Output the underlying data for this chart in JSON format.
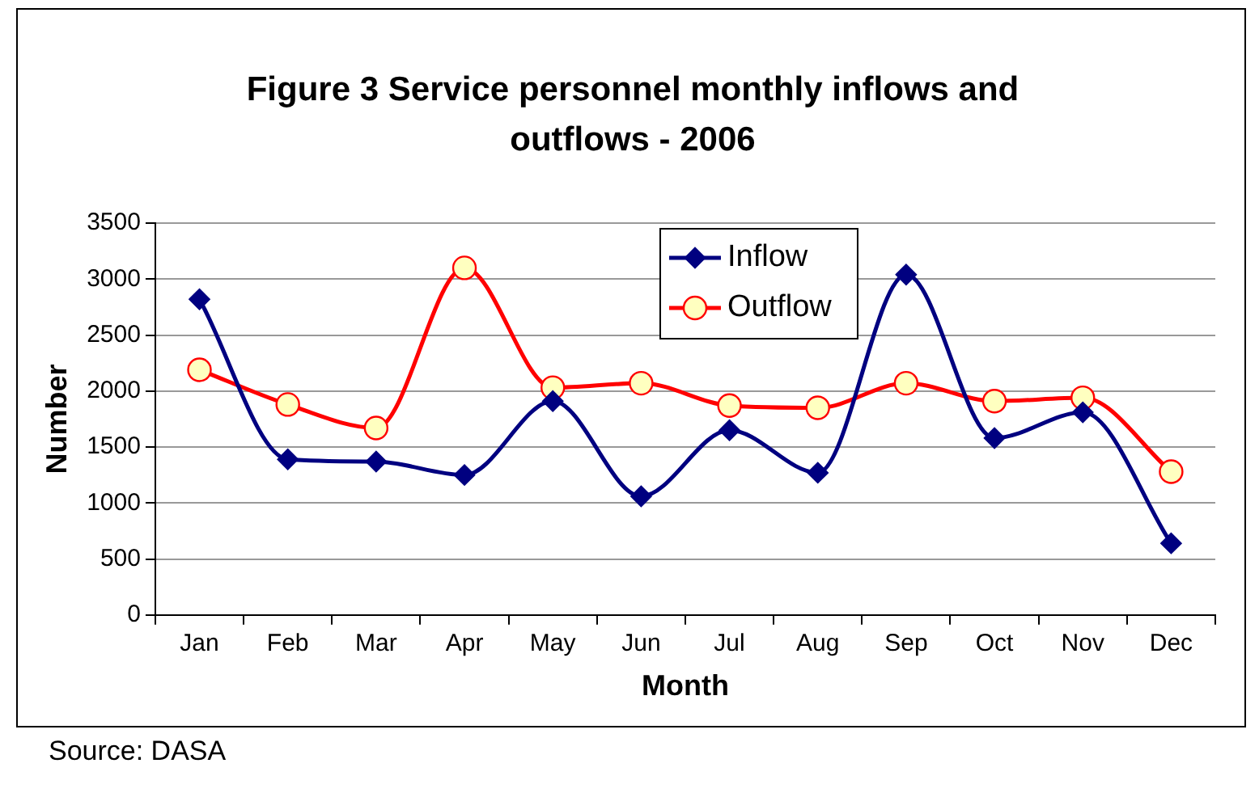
{
  "chart_data": {
    "type": "line",
    "title": "Figure 3 Service personnel monthly inflows and outflows - 2006",
    "xlabel": "Month",
    "ylabel": "Number",
    "categories": [
      "Jan",
      "Feb",
      "Mar",
      "Apr",
      "May",
      "Jun",
      "Jul",
      "Aug",
      "Sep",
      "Oct",
      "Nov",
      "Dec"
    ],
    "series": [
      {
        "name": "Inflow",
        "color": "#000080",
        "marker": "diamond",
        "values": [
          2820,
          1390,
          1370,
          1250,
          1910,
          1060,
          1650,
          1270,
          3040,
          1580,
          1810,
          640
        ]
      },
      {
        "name": "Outflow",
        "color": "#ff0000",
        "marker": "circle",
        "values": [
          2190,
          1880,
          1670,
          3100,
          2030,
          2070,
          1870,
          1850,
          2070,
          1910,
          1940,
          1280
        ]
      }
    ],
    "ylim": [
      0,
      3500
    ],
    "yticks": [
      0,
      500,
      1000,
      1500,
      2000,
      2500,
      3000,
      3500
    ],
    "grid": "y",
    "legend": "top",
    "annotations": [
      "Source: DASA"
    ]
  }
}
